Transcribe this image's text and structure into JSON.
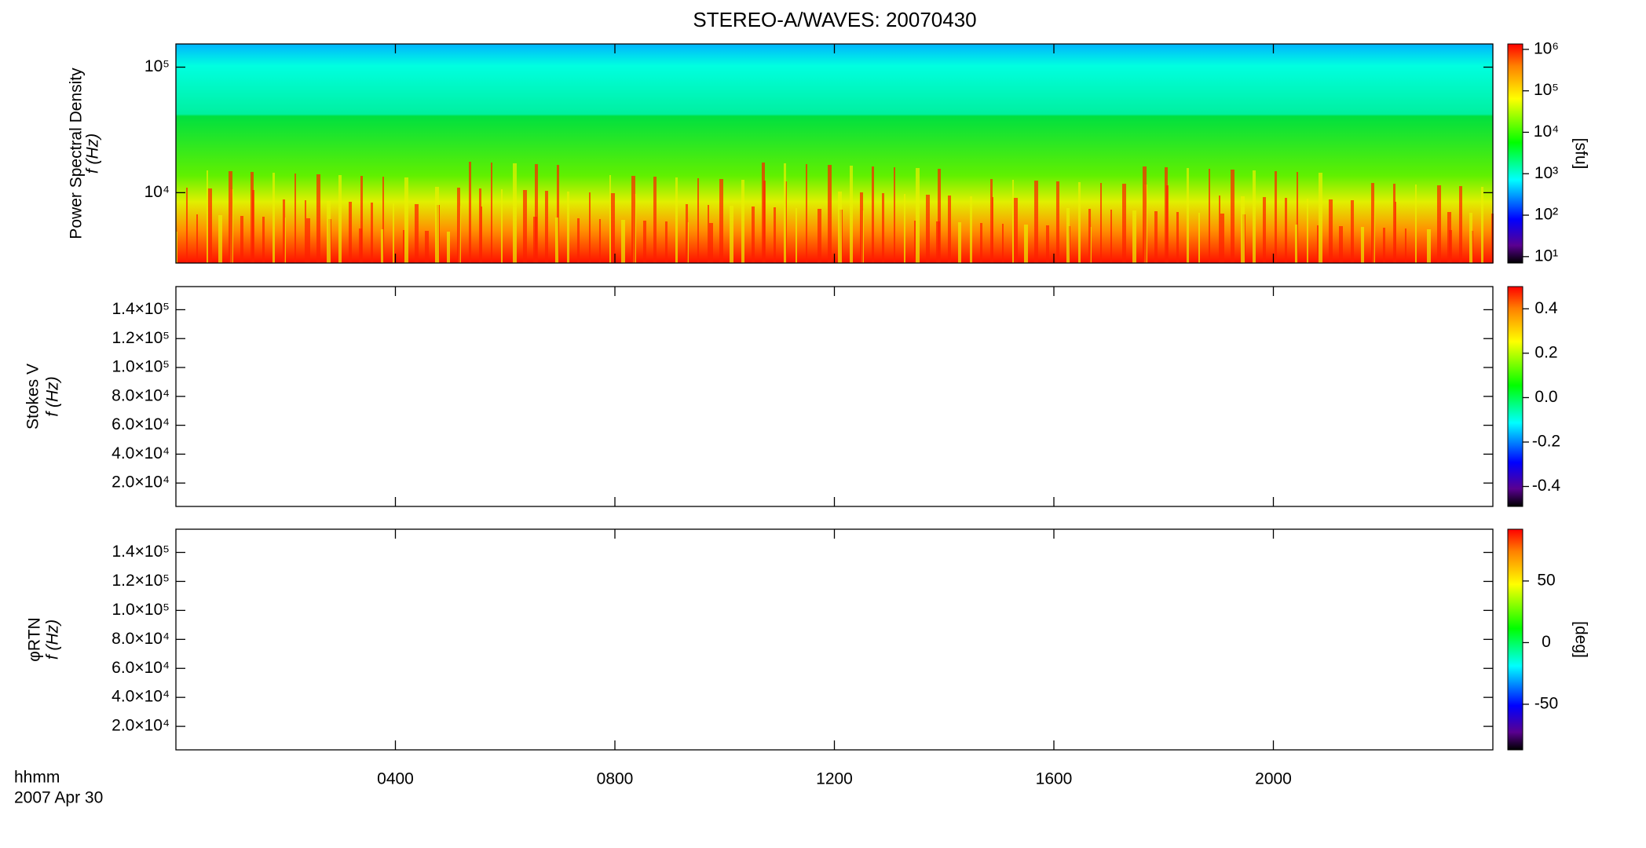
{
  "chart_data": [
    {
      "type": "spectrogram",
      "title": "STEREO-A/WAVES: 20070430",
      "ylabel": "Power Spectral Density",
      "ylabel2": "f (Hz)",
      "ylog": true,
      "ylim": [
        2750,
        153000
      ],
      "yticks": [
        {
          "value": 10000,
          "label": "10⁴"
        },
        {
          "value": 100000,
          "label": "10⁵"
        }
      ],
      "colorbar_label": "[sfu]",
      "clog": true,
      "clim": [
        7,
        1350000
      ],
      "cticks": [
        {
          "value": 10,
          "label": "10¹"
        },
        {
          "value": 100,
          "label": "10²"
        },
        {
          "value": 1000,
          "label": "10³"
        },
        {
          "value": 10000,
          "label": "10⁴"
        },
        {
          "value": 100000,
          "label": "10⁵"
        },
        {
          "value": 1000000,
          "label": "10⁶"
        }
      ]
    },
    {
      "type": "spectrogram",
      "ylabel": "Stokes V",
      "ylabel2": "f (Hz)",
      "ylog": false,
      "ylim": [
        3800,
        156000
      ],
      "yticks": [
        {
          "value": 20000,
          "label": "2.0×10⁴"
        },
        {
          "value": 40000,
          "label": "4.0×10⁴"
        },
        {
          "value": 60000,
          "label": "6.0×10⁴"
        },
        {
          "value": 80000,
          "label": "8.0×10⁴"
        },
        {
          "value": 100000,
          "label": "1.0×10⁵"
        },
        {
          "value": 120000,
          "label": "1.2×10⁵"
        },
        {
          "value": 140000,
          "label": "1.4×10⁵"
        }
      ],
      "clog": false,
      "clim": [
        -0.49,
        0.5
      ],
      "cticks": [
        -0.4,
        -0.2,
        {
          "value": 0,
          "label": "0.0"
        },
        0.2,
        0.4
      ]
    },
    {
      "type": "spectrogram",
      "ylabel": "φRTN",
      "ylabel2": "f (Hz)",
      "ylog": false,
      "ylim": [
        3800,
        156000
      ],
      "yticks": [
        {
          "value": 20000,
          "label": "2.0×10⁴"
        },
        {
          "value": 40000,
          "label": "4.0×10⁴"
        },
        {
          "value": 60000,
          "label": "6.0×10⁴"
        },
        {
          "value": 80000,
          "label": "8.0×10⁴"
        },
        {
          "value": 100000,
          "label": "1.0×10⁵"
        },
        {
          "value": 120000,
          "label": "1.2×10⁵"
        },
        {
          "value": 140000,
          "label": "1.4×10⁵"
        }
      ],
      "colorbar_label": "[deg]",
      "clog": false,
      "clim": [
        -87,
        92
      ],
      "cticks": [
        -50,
        0,
        50
      ],
      "xlabel": "hhmm",
      "date": "2007 Apr 30",
      "xlim": [
        0,
        24
      ],
      "xticks": [
        {
          "value": 4,
          "label": "0400"
        },
        {
          "value": 8,
          "label": "0800"
        },
        {
          "value": 12,
          "label": "1200"
        },
        {
          "value": 16,
          "label": "1600"
        },
        {
          "value": 20,
          "label": "2000"
        }
      ]
    }
  ]
}
